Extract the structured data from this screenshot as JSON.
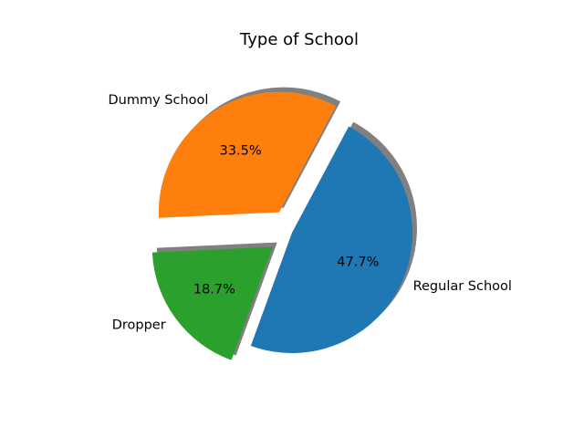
{
  "chart_data": {
    "type": "pie",
    "title": "Type of School",
    "slices": [
      {
        "label": "Regular School",
        "value": 47.7,
        "pct_label": "47.7%",
        "color": "#1f77b4",
        "explode": 0.0
      },
      {
        "label": "Dummy School",
        "value": 33.5,
        "pct_label": "33.5%",
        "color": "#ff7f0e",
        "explode": 0.2
      },
      {
        "label": "Dropper",
        "value": 18.7,
        "pct_label": "18.7%",
        "color": "#2ca02c",
        "explode": 0.2
      }
    ],
    "start_angle_deg": 250,
    "shadow": true,
    "legend": false
  }
}
